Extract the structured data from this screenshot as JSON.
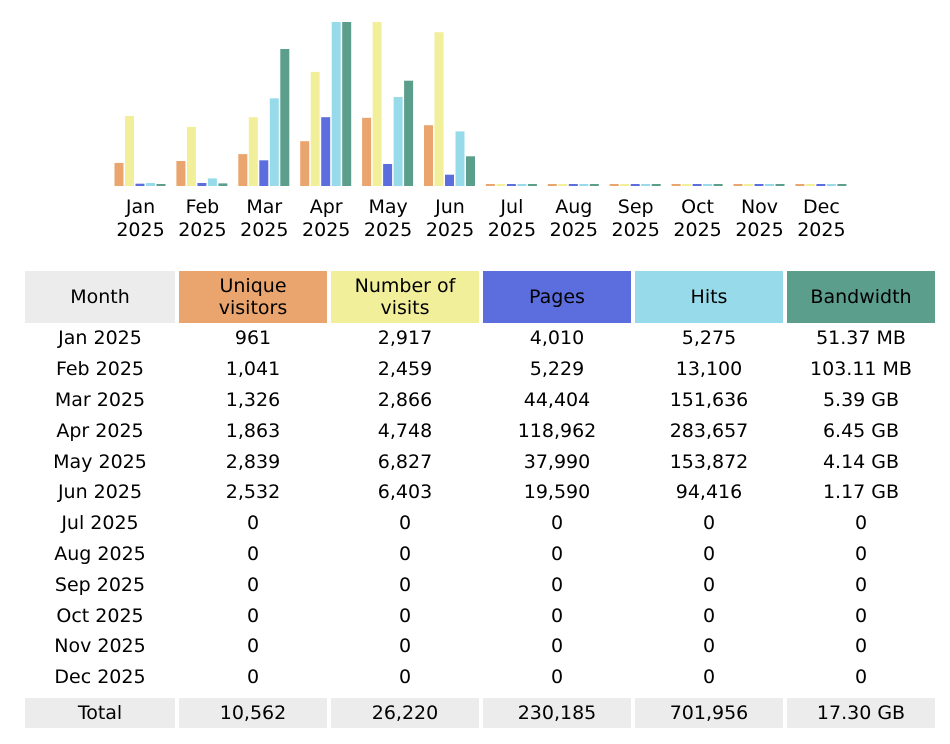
{
  "colors": {
    "unique_visitors": "#e9a56d",
    "number_of_visits": "#f2ef9a",
    "pages": "#5c6ede",
    "hits": "#97dbeb",
    "bandwidth": "#5b9e8b",
    "header_gray": "#ececec"
  },
  "chart_data": {
    "type": "bar",
    "categories": [
      [
        "Jan",
        "2025"
      ],
      [
        "Feb",
        "2025"
      ],
      [
        "Mar",
        "2025"
      ],
      [
        "Apr",
        "2025"
      ],
      [
        "May",
        "2025"
      ],
      [
        "Jun",
        "2025"
      ],
      [
        "Jul",
        "2025"
      ],
      [
        "Aug",
        "2025"
      ],
      [
        "Sep",
        "2025"
      ],
      [
        "Oct",
        "2025"
      ],
      [
        "Nov",
        "2025"
      ],
      [
        "Dec",
        "2025"
      ]
    ],
    "series": [
      {
        "values": [
          961,
          1041,
          1326,
          1863,
          2839,
          2532,
          0,
          0,
          0,
          0,
          0,
          0
        ]
      },
      {
        "values": [
          2917,
          2459,
          2866,
          4748,
          6827,
          6403,
          0,
          0,
          0,
          0,
          0,
          0
        ]
      },
      {
        "values": [
          4010,
          5229,
          44404,
          118962,
          37990,
          19590,
          0,
          0,
          0,
          0,
          0,
          0
        ]
      },
      {
        "values": [
          5275,
          13100,
          151636,
          283657,
          153872,
          94416,
          0,
          0,
          0,
          0,
          0,
          0
        ]
      },
      {
        "values": [
          51.37,
          103.11,
          5519.36,
          6604.8,
          4239.36,
          1198.08,
          0,
          0,
          0,
          0,
          0,
          0
        ]
      }
    ],
    "value_units": [
      "count",
      "count",
      "count",
      "count",
      "MB"
    ]
  },
  "table": {
    "headers": [
      "Month",
      "Unique visitors",
      "Number of visits",
      "Pages",
      "Hits",
      "Bandwidth"
    ],
    "rows": [
      [
        "Jan 2025",
        "961",
        "2,917",
        "4,010",
        "5,275",
        "51.37 MB"
      ],
      [
        "Feb 2025",
        "1,041",
        "2,459",
        "5,229",
        "13,100",
        "103.11 MB"
      ],
      [
        "Mar 2025",
        "1,326",
        "2,866",
        "44,404",
        "151,636",
        "5.39 GB"
      ],
      [
        "Apr 2025",
        "1,863",
        "4,748",
        "118,962",
        "283,657",
        "6.45 GB"
      ],
      [
        "May 2025",
        "2,839",
        "6,827",
        "37,990",
        "153,872",
        "4.14 GB"
      ],
      [
        "Jun 2025",
        "2,532",
        "6,403",
        "19,590",
        "94,416",
        "1.17 GB"
      ],
      [
        "Jul 2025",
        "0",
        "0",
        "0",
        "0",
        "0"
      ],
      [
        "Aug 2025",
        "0",
        "0",
        "0",
        "0",
        "0"
      ],
      [
        "Sep 2025",
        "0",
        "0",
        "0",
        "0",
        "0"
      ],
      [
        "Oct 2025",
        "0",
        "0",
        "0",
        "0",
        "0"
      ],
      [
        "Nov 2025",
        "0",
        "0",
        "0",
        "0",
        "0"
      ],
      [
        "Dec 2025",
        "0",
        "0",
        "0",
        "0",
        "0"
      ]
    ],
    "total": [
      "Total",
      "10,562",
      "26,220",
      "230,185",
      "701,956",
      "17.30 GB"
    ]
  }
}
